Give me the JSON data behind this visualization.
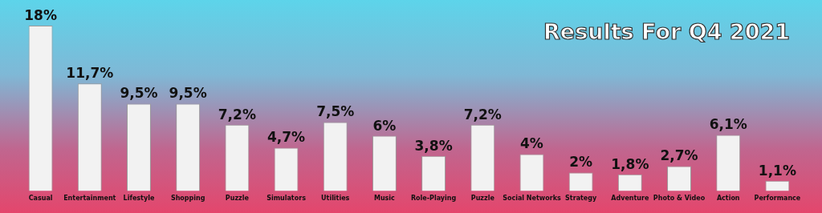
{
  "chart_data": {
    "type": "bar",
    "title": "Results For Q4 2021",
    "categories": [
      "Casual",
      "Entertainment",
      "Lifestyle",
      "Shopping",
      "Puzzle",
      "Simulators",
      "Utilities",
      "Music",
      "Role-Playing",
      "Puzzle",
      "Social Networks",
      "Strategy",
      "Adventure",
      "Photo & Video",
      "Action",
      "Performance"
    ],
    "values": [
      18,
      11.7,
      9.5,
      9.5,
      7.2,
      4.7,
      7.5,
      6,
      3.8,
      7.2,
      4,
      2,
      1.8,
      2.7,
      6.1,
      1.1
    ],
    "value_labels": [
      "18%",
      "11,7%",
      "9,5%",
      "9,5%",
      "7,2%",
      "4,7%",
      "7,5%",
      "6%",
      "3,8%",
      "7,2%",
      "4%",
      "2%",
      "1,8%",
      "2,7%",
      "6,1%",
      "1,1%"
    ],
    "color": "#f2f2f2",
    "grid": false,
    "legend": false
  }
}
